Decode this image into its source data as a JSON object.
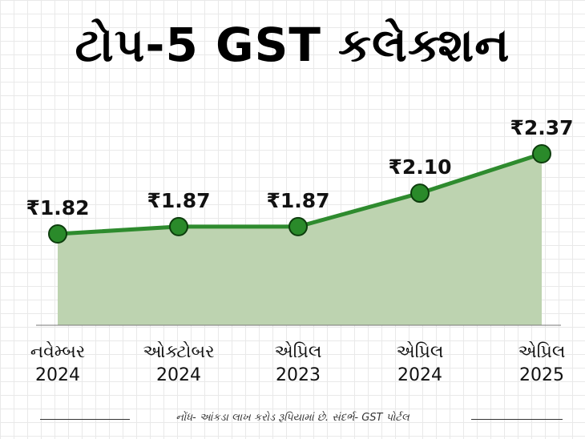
{
  "title": "ટોપ-5 GST કલેક્શન",
  "footnote": "નોંધ- આંકડા લાખ કરોડ રૂપિયામાં છે. સંદર્ભ- GST પોર્ટલ",
  "colors": {
    "line": "#2e8b2e",
    "marker": "#2a8a2a",
    "area": "#bdd3b0"
  },
  "chart_data": {
    "type": "area",
    "categories": [
      [
        "નવેમ્બર",
        "2024"
      ],
      [
        "ઓક્ટોબર",
        "2024"
      ],
      [
        "એપ્રિલ",
        "2023"
      ],
      [
        "એપ્રિલ",
        "2024"
      ],
      [
        "એપ્રિલ",
        "2025"
      ]
    ],
    "values": [
      1.82,
      1.87,
      1.87,
      2.1,
      2.37
    ],
    "value_labels": [
      "₹1.82",
      "₹1.87",
      "₹1.87",
      "₹2.10",
      "₹2.37"
    ],
    "grid": false
  }
}
